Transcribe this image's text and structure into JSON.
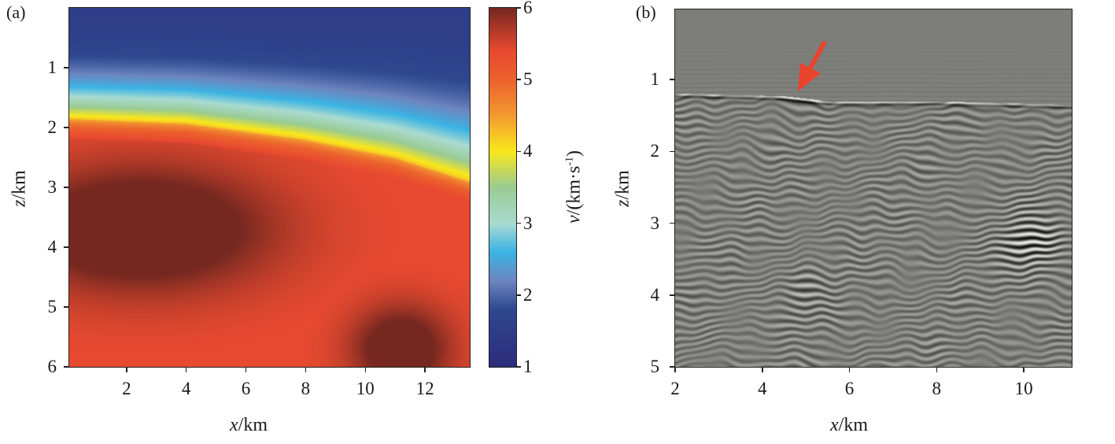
{
  "chart_data": [
    {
      "type": "heatmap",
      "panel_label": "(a)",
      "title": "",
      "xlabel": {
        "var": "x",
        "unit": "/km"
      },
      "ylabel": {
        "var": "z",
        "unit": "/km"
      },
      "xlim": [
        0.08,
        13.5
      ],
      "ylim": [
        6,
        0
      ],
      "xticks": [
        "2",
        "4",
        "6",
        "8",
        "10",
        "12"
      ],
      "yticks": [
        "1",
        "2",
        "3",
        "4",
        "5",
        "6"
      ],
      "colorbar": {
        "label": {
          "var": "v",
          "unit": "/(km·s",
          "exp": "-1",
          "close": ")"
        },
        "range": [
          1,
          6
        ],
        "ticks": [
          "1",
          "2",
          "3",
          "4",
          "5",
          "6"
        ],
        "colormap": [
          [
            1,
            "#2c2c7c"
          ],
          [
            1.8,
            "#2f4890"
          ],
          [
            2.2,
            "#6d86c0"
          ],
          [
            2.6,
            "#3bb4e4"
          ],
          [
            3.0,
            "#a9dbd1"
          ],
          [
            3.5,
            "#9acb92"
          ],
          [
            4.0,
            "#f9e81c"
          ],
          [
            4.5,
            "#f39a30"
          ],
          [
            5.0,
            "#ec622c"
          ],
          [
            5.4,
            "#e84a30"
          ],
          [
            6.0,
            "#762820"
          ]
        ]
      },
      "model": {
        "v_top": 1.5,
        "v_interface": 4.2,
        "v_background": 5.4,
        "interface_depth": {
          "x": [
            0,
            4,
            8,
            11,
            13.5
          ],
          "z": [
            1.85,
            1.93,
            2.2,
            2.5,
            2.9
          ]
        },
        "anomalies": [
          {
            "x": 2.5,
            "z": 3.7,
            "sx": 4.2,
            "sz": 1.0,
            "dv": 0.7
          },
          {
            "x": 11.2,
            "z": 5.7,
            "sx": 1.6,
            "sz": 0.7,
            "dv": 0.6
          }
        ]
      }
    },
    {
      "type": "heatmap",
      "panel_label": "(b)",
      "title": "",
      "xlabel": {
        "var": "x",
        "unit": "/km"
      },
      "ylabel": {
        "var": "z",
        "unit": "/km"
      },
      "xlim": [
        2,
        11.1
      ],
      "ylim": [
        5,
        0
      ],
      "xticks": [
        "2",
        "4",
        "6",
        "8",
        "10"
      ],
      "yticks": [
        "1",
        "2",
        "3",
        "4",
        "5"
      ],
      "colormap": "gray",
      "reflector": {
        "x": [
          2,
          4.5,
          5.5,
          8,
          11.1
        ],
        "z": [
          1.22,
          1.26,
          1.33,
          1.33,
          1.38
        ]
      },
      "annotation": {
        "type": "arrow",
        "color": "#e8442c",
        "points_to": {
          "x": 4.8,
          "z": 1.15
        }
      }
    }
  ]
}
